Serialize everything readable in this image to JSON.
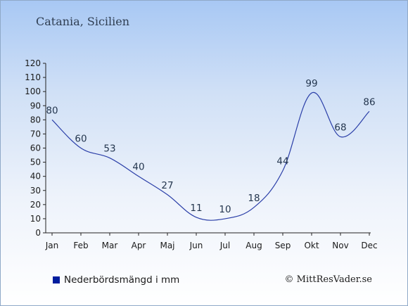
{
  "chart_data": {
    "type": "line",
    "title": "Catania, Sicilien",
    "categories": [
      "Jan",
      "Feb",
      "Mar",
      "Apr",
      "Maj",
      "Jun",
      "Jul",
      "Aug",
      "Sep",
      "Okt",
      "Nov",
      "Dec"
    ],
    "series": [
      {
        "name": "Nederbördsmängd i mm",
        "values": [
          80,
          60,
          53,
          40,
          27,
          11,
          10,
          18,
          44,
          99,
          68,
          86
        ]
      }
    ],
    "yticks": [
      0,
      10,
      20,
      30,
      40,
      50,
      60,
      70,
      80,
      90,
      100,
      110,
      120
    ],
    "ylim": [
      0,
      120
    ],
    "grid": false,
    "legend_position": "bottom-left",
    "line_color": "#2b3fa8",
    "legend_color": "#001d9e",
    "credit": "© MittResVader.se"
  }
}
